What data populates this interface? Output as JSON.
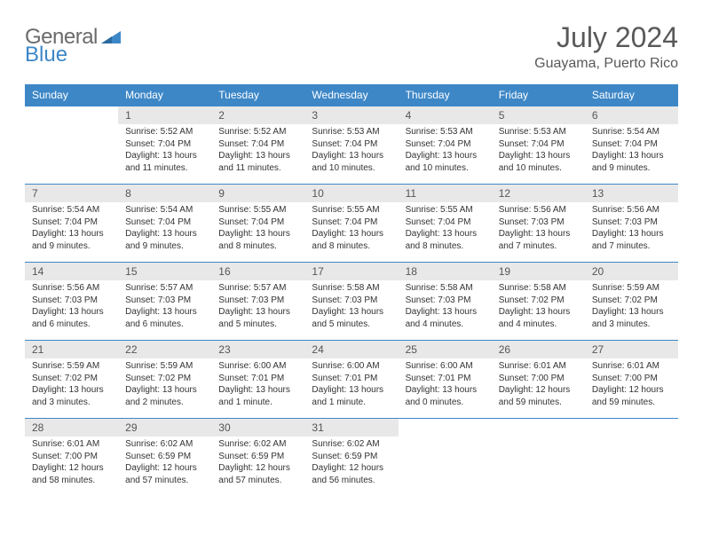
{
  "logo": {
    "text1": "General",
    "text2": "Blue"
  },
  "title": "July 2024",
  "location": "Guayama, Puerto Rico",
  "colors": {
    "header_bg": "#3d87c7",
    "header_text": "#ffffff",
    "daynum_bg": "#e8e8e8",
    "border": "#3d87c7",
    "text": "#333333",
    "title_text": "#595959"
  },
  "weekdays": [
    "Sunday",
    "Monday",
    "Tuesday",
    "Wednesday",
    "Thursday",
    "Friday",
    "Saturday"
  ],
  "weeks": [
    [
      null,
      {
        "n": "1",
        "sr": "5:52 AM",
        "ss": "7:04 PM",
        "dl": "13 hours and 11 minutes."
      },
      {
        "n": "2",
        "sr": "5:52 AM",
        "ss": "7:04 PM",
        "dl": "13 hours and 11 minutes."
      },
      {
        "n": "3",
        "sr": "5:53 AM",
        "ss": "7:04 PM",
        "dl": "13 hours and 10 minutes."
      },
      {
        "n": "4",
        "sr": "5:53 AM",
        "ss": "7:04 PM",
        "dl": "13 hours and 10 minutes."
      },
      {
        "n": "5",
        "sr": "5:53 AM",
        "ss": "7:04 PM",
        "dl": "13 hours and 10 minutes."
      },
      {
        "n": "6",
        "sr": "5:54 AM",
        "ss": "7:04 PM",
        "dl": "13 hours and 9 minutes."
      }
    ],
    [
      {
        "n": "7",
        "sr": "5:54 AM",
        "ss": "7:04 PM",
        "dl": "13 hours and 9 minutes."
      },
      {
        "n": "8",
        "sr": "5:54 AM",
        "ss": "7:04 PM",
        "dl": "13 hours and 9 minutes."
      },
      {
        "n": "9",
        "sr": "5:55 AM",
        "ss": "7:04 PM",
        "dl": "13 hours and 8 minutes."
      },
      {
        "n": "10",
        "sr": "5:55 AM",
        "ss": "7:04 PM",
        "dl": "13 hours and 8 minutes."
      },
      {
        "n": "11",
        "sr": "5:55 AM",
        "ss": "7:04 PM",
        "dl": "13 hours and 8 minutes."
      },
      {
        "n": "12",
        "sr": "5:56 AM",
        "ss": "7:03 PM",
        "dl": "13 hours and 7 minutes."
      },
      {
        "n": "13",
        "sr": "5:56 AM",
        "ss": "7:03 PM",
        "dl": "13 hours and 7 minutes."
      }
    ],
    [
      {
        "n": "14",
        "sr": "5:56 AM",
        "ss": "7:03 PM",
        "dl": "13 hours and 6 minutes."
      },
      {
        "n": "15",
        "sr": "5:57 AM",
        "ss": "7:03 PM",
        "dl": "13 hours and 6 minutes."
      },
      {
        "n": "16",
        "sr": "5:57 AM",
        "ss": "7:03 PM",
        "dl": "13 hours and 5 minutes."
      },
      {
        "n": "17",
        "sr": "5:58 AM",
        "ss": "7:03 PM",
        "dl": "13 hours and 5 minutes."
      },
      {
        "n": "18",
        "sr": "5:58 AM",
        "ss": "7:03 PM",
        "dl": "13 hours and 4 minutes."
      },
      {
        "n": "19",
        "sr": "5:58 AM",
        "ss": "7:02 PM",
        "dl": "13 hours and 4 minutes."
      },
      {
        "n": "20",
        "sr": "5:59 AM",
        "ss": "7:02 PM",
        "dl": "13 hours and 3 minutes."
      }
    ],
    [
      {
        "n": "21",
        "sr": "5:59 AM",
        "ss": "7:02 PM",
        "dl": "13 hours and 3 minutes."
      },
      {
        "n": "22",
        "sr": "5:59 AM",
        "ss": "7:02 PM",
        "dl": "13 hours and 2 minutes."
      },
      {
        "n": "23",
        "sr": "6:00 AM",
        "ss": "7:01 PM",
        "dl": "13 hours and 1 minute."
      },
      {
        "n": "24",
        "sr": "6:00 AM",
        "ss": "7:01 PM",
        "dl": "13 hours and 1 minute."
      },
      {
        "n": "25",
        "sr": "6:00 AM",
        "ss": "7:01 PM",
        "dl": "13 hours and 0 minutes."
      },
      {
        "n": "26",
        "sr": "6:01 AM",
        "ss": "7:00 PM",
        "dl": "12 hours and 59 minutes."
      },
      {
        "n": "27",
        "sr": "6:01 AM",
        "ss": "7:00 PM",
        "dl": "12 hours and 59 minutes."
      }
    ],
    [
      {
        "n": "28",
        "sr": "6:01 AM",
        "ss": "7:00 PM",
        "dl": "12 hours and 58 minutes."
      },
      {
        "n": "29",
        "sr": "6:02 AM",
        "ss": "6:59 PM",
        "dl": "12 hours and 57 minutes."
      },
      {
        "n": "30",
        "sr": "6:02 AM",
        "ss": "6:59 PM",
        "dl": "12 hours and 57 minutes."
      },
      {
        "n": "31",
        "sr": "6:02 AM",
        "ss": "6:59 PM",
        "dl": "12 hours and 56 minutes."
      },
      null,
      null,
      null
    ]
  ],
  "labels": {
    "sunrise_prefix": "Sunrise: ",
    "sunset_prefix": "Sunset: ",
    "daylight_prefix": "Daylight: "
  }
}
